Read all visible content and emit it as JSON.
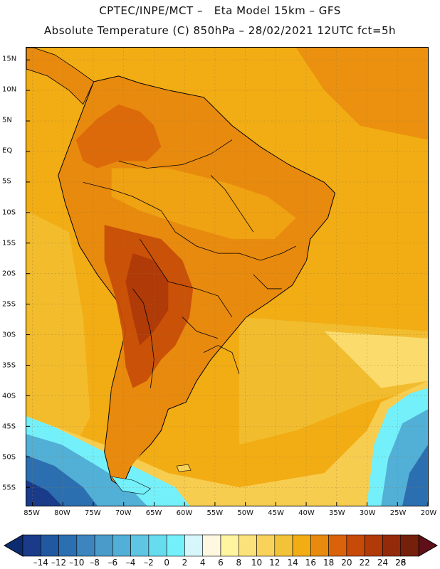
{
  "title": {
    "line1": "CPTEC/INPE/MCT –   Eta Model 15km – GFS",
    "line2": "Absolute Temperature (C) 850hPa – 28/02/2021 12UTC fct=5h"
  },
  "map": {
    "lon_range": [
      -86,
      -20
    ],
    "lat_range": [
      -58,
      17
    ],
    "lat_ticks": [
      "15N",
      "10N",
      "5N",
      "EQ",
      "5S",
      "10S",
      "15S",
      "20S",
      "25S",
      "30S",
      "35S",
      "40S",
      "45S",
      "50S",
      "55S"
    ],
    "lat_tick_values": [
      15,
      10,
      5,
      0,
      -5,
      -10,
      -15,
      -20,
      -25,
      -30,
      -35,
      -40,
      -45,
      -50,
      -55
    ],
    "lon_ticks": [
      "85W",
      "80W",
      "75W",
      "70W",
      "65W",
      "60W",
      "55W",
      "50W",
      "45W",
      "40W",
      "35W",
      "30W",
      "25W",
      "20W"
    ],
    "lon_tick_values": [
      -85,
      -80,
      -75,
      -70,
      -65,
      -60,
      -55,
      -50,
      -45,
      -40,
      -35,
      -30,
      -25,
      -20
    ],
    "colors": {
      "ocean_base": "#f2ad14",
      "frame": "#000000"
    }
  },
  "colorbar": {
    "labels": [
      "-14",
      "-12",
      "-10",
      "-8",
      "-6",
      "-4",
      "-2",
      "0",
      "2",
      "4",
      "6",
      "8",
      "10",
      "12",
      "14",
      "16",
      "18",
      "20",
      "22",
      "24",
      "26",
      "28"
    ],
    "colors": [
      "#1a3a8a",
      "#2159a0",
      "#2c6fb0",
      "#3d85bf",
      "#4a9bc9",
      "#52afd6",
      "#5ec6e3",
      "#68dcef",
      "#74f0fa",
      "#d6f6fb",
      "#fff8e0",
      "#fff4a0",
      "#fbe27a",
      "#f8d25a",
      "#f2c238",
      "#f2ad14",
      "#e88a0e",
      "#d9620a",
      "#c74a08",
      "#b03a08",
      "#932a0a",
      "#75200a"
    ],
    "under_color": "#0d2c70",
    "over_color": "#5e0f18"
  }
}
